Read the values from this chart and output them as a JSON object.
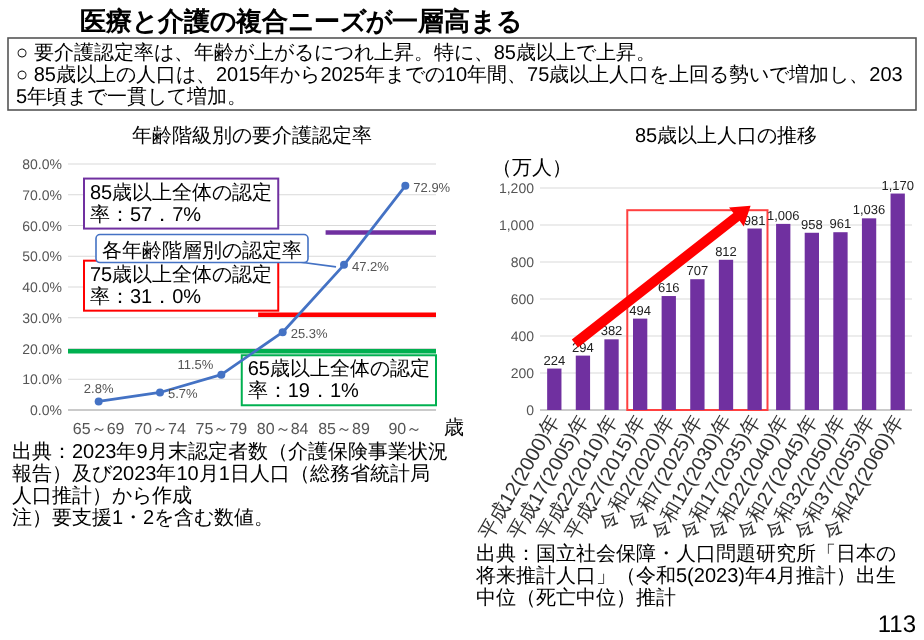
{
  "chart_data": [
    {
      "type": "other",
      "title": "医療と介護の複合ニーズが一層高まる",
      "annotations": [
        "○ 要介護認定率は、年齢が上がるにつれ上昇。特に、85歳以上で上昇。",
        "○ 85歳以上の人口は、2015年から2025年までの10年間、75歳以上人口を上回る勢いで増加し、2035年頃まで一貫して増加。",
        "113"
      ]
    },
    {
      "type": "line",
      "title": "年齢階級別の要介護認定率",
      "xlabel": "歳",
      "categories": [
        "65～69",
        "70～74",
        "75～79",
        "80～84",
        "85～89",
        "90～"
      ],
      "values": [
        2.8,
        5.7,
        11.5,
        25.3,
        47.2,
        72.9
      ],
      "value_labels": [
        "2.8%",
        "5.7%",
        "11.5%",
        "25.3%",
        "47.2%",
        "72.9%"
      ],
      "color": "#4472c4",
      "marker": "circle",
      "ylim": [
        0,
        80
      ],
      "yticks": [
        {
          "value": 0,
          "label": "0.0%"
        },
        {
          "value": 10,
          "label": "10.0%"
        },
        {
          "value": 20,
          "label": "20.0%"
        },
        {
          "value": 30,
          "label": "30.0%"
        },
        {
          "value": 40,
          "label": "40.0%"
        },
        {
          "value": 50,
          "label": "50.0%"
        },
        {
          "value": 60,
          "label": "60.0%"
        },
        {
          "value": 70,
          "label": "70.0%"
        },
        {
          "value": 80,
          "label": "80.0%"
        }
      ],
      "grid": "y",
      "ref_lines": [
        {
          "axis": "y",
          "value": 57.7,
          "label": "85歳以上全体の認定率：57．7%",
          "color": "#7030a0"
        },
        {
          "axis": "y",
          "value": 31.0,
          "label": "75歳以上全体の認定率：31．0%",
          "color": "#ff0000"
        },
        {
          "axis": "y",
          "value": 19.1,
          "label": "65歳以上全体の認定率：19．1%",
          "color": "#00b050"
        }
      ],
      "annotations": [
        {
          "text": "各年齢階層別の認定率",
          "x": "85～89",
          "y": 47.2
        },
        "出典：2023年9月末認定者数（介護保険事業状況報告）及び2023年10月1日人口（総務省統計局人口推計）から作成",
        "注）要支援1・2を含む数値。"
      ]
    },
    {
      "type": "bar",
      "title": "85歳以上人口の推移",
      "ylabel": "（万人）",
      "categories": [
        "平成12(2000)年",
        "平成17(2005)年",
        "平成22(2010)年",
        "平成27(2015)年",
        "令和2(2020)年",
        "令和7(2025)年",
        "令和12(2030)年",
        "令和17(2035)年",
        "令和22(2040)年",
        "令和27(2045)年",
        "令和32(2050)年",
        "令和37(2055)年",
        "令和42(2060)年"
      ],
      "values": [
        224,
        294,
        382,
        494,
        616,
        707,
        812,
        981,
        1006,
        958,
        961,
        1036,
        1170
      ],
      "value_labels": [
        "224",
        "294",
        "382",
        "494",
        "616",
        "707",
        "812",
        "981",
        "1,006",
        "958",
        "961",
        "1,036",
        "1,170"
      ],
      "color": "#7030a0",
      "ylim": [
        0,
        1200
      ],
      "yticks": [
        {
          "value": 0,
          "label": "0"
        },
        {
          "value": 200,
          "label": "200"
        },
        {
          "value": 400,
          "label": "400"
        },
        {
          "value": 600,
          "label": "600"
        },
        {
          "value": 800,
          "label": "800"
        },
        {
          "value": 1000,
          "label": "1,000"
        },
        {
          "value": 1200,
          "label": "1,200"
        }
      ],
      "grid": "y",
      "annotations": [
        "出典：国立社会保障・人口問題研究所「日本の将来推計人口」（令和5(2023)年4月推計）出生中位（死亡中位）推計"
      ]
    }
  ]
}
